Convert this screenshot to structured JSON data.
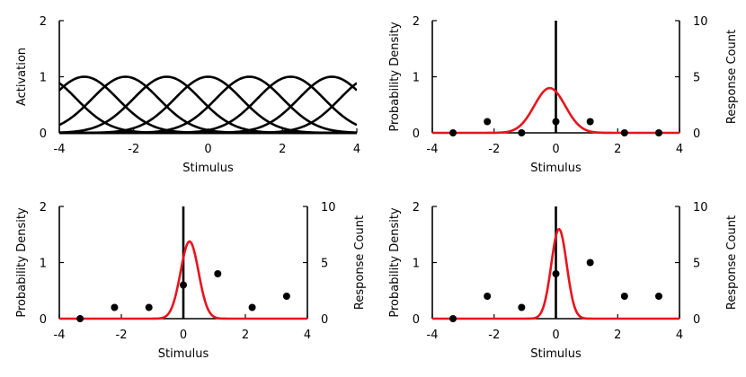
{
  "chart_data": [
    {
      "type": "line",
      "id": "tuning-curves",
      "xlabel": "Stimulus",
      "ylabel": "Activation",
      "xlim": [
        -4,
        4
      ],
      "ylim": [
        0,
        2
      ],
      "xticks": [
        -4,
        -2,
        0,
        2,
        4
      ],
      "yticks": [
        0,
        1,
        2
      ],
      "curve_color": "#000000",
      "tuning_centers": [
        -4.44,
        -3.33,
        -2.22,
        -1.11,
        0,
        1.11,
        2.22,
        3.33,
        4.44
      ],
      "tuning_width": 0.9,
      "tuning_peak": 1
    },
    {
      "type": "line",
      "id": "posterior-1",
      "xlabel": "Stimulus",
      "ylabel": "Probability Density",
      "ylabel_right": "Response Count",
      "xlim": [
        -4,
        4
      ],
      "ylim": [
        0,
        2
      ],
      "ylim_right": [
        0,
        10
      ],
      "xticks": [
        -4,
        -2,
        0,
        2,
        4
      ],
      "yticks": [
        0,
        1,
        2
      ],
      "yticks_right": [
        0,
        5,
        10
      ],
      "stimulus_line": 0,
      "posterior": {
        "mean": -0.2,
        "sd": 0.5,
        "color": "#e8141e"
      },
      "responses": {
        "x": [
          -4.44,
          -3.33,
          -2.22,
          -1.11,
          0,
          1.11,
          2.22,
          3.33,
          4.44
        ],
        "counts": [
          0,
          0,
          1,
          0,
          1,
          1,
          0,
          0,
          0
        ],
        "color": "#000000"
      }
    },
    {
      "type": "line",
      "id": "posterior-2",
      "xlabel": "Stimulus",
      "ylabel": "Probability Density",
      "ylabel_right": "Response Count",
      "xlim": [
        -4,
        4
      ],
      "ylim": [
        0,
        2
      ],
      "ylim_right": [
        0,
        10
      ],
      "xticks": [
        -4,
        -2,
        0,
        2,
        4
      ],
      "yticks": [
        0,
        1,
        2
      ],
      "yticks_right": [
        0,
        5,
        10
      ],
      "stimulus_line": 0,
      "posterior": {
        "mean": 0.2,
        "sd": 0.29,
        "color": "#e8141e"
      },
      "responses": {
        "x": [
          -4.44,
          -3.33,
          -2.22,
          -1.11,
          0,
          1.11,
          2.22,
          3.33,
          4.44
        ],
        "counts": [
          0,
          0,
          1,
          1,
          3,
          4,
          1,
          2,
          0
        ],
        "color": "#000000"
      }
    },
    {
      "type": "line",
      "id": "posterior-3",
      "xlabel": "Stimulus",
      "ylabel": "Probability Density",
      "ylabel_right": "Response Count",
      "xlim": [
        -4,
        4
      ],
      "ylim": [
        0,
        2
      ],
      "ylim_right": [
        0,
        10
      ],
      "xticks": [
        -4,
        -2,
        0,
        2,
        4
      ],
      "yticks": [
        0,
        1,
        2
      ],
      "yticks_right": [
        0,
        5,
        10
      ],
      "stimulus_line": 0,
      "posterior": {
        "mean": 0.1,
        "sd": 0.25,
        "color": "#e8141e"
      },
      "responses": {
        "x": [
          -4.44,
          -3.33,
          -2.22,
          -1.11,
          0,
          1.11,
          2.22,
          3.33,
          4.44
        ],
        "counts": [
          0,
          0,
          2,
          1,
          4,
          5,
          2,
          2,
          0
        ],
        "color": "#000000"
      }
    }
  ]
}
